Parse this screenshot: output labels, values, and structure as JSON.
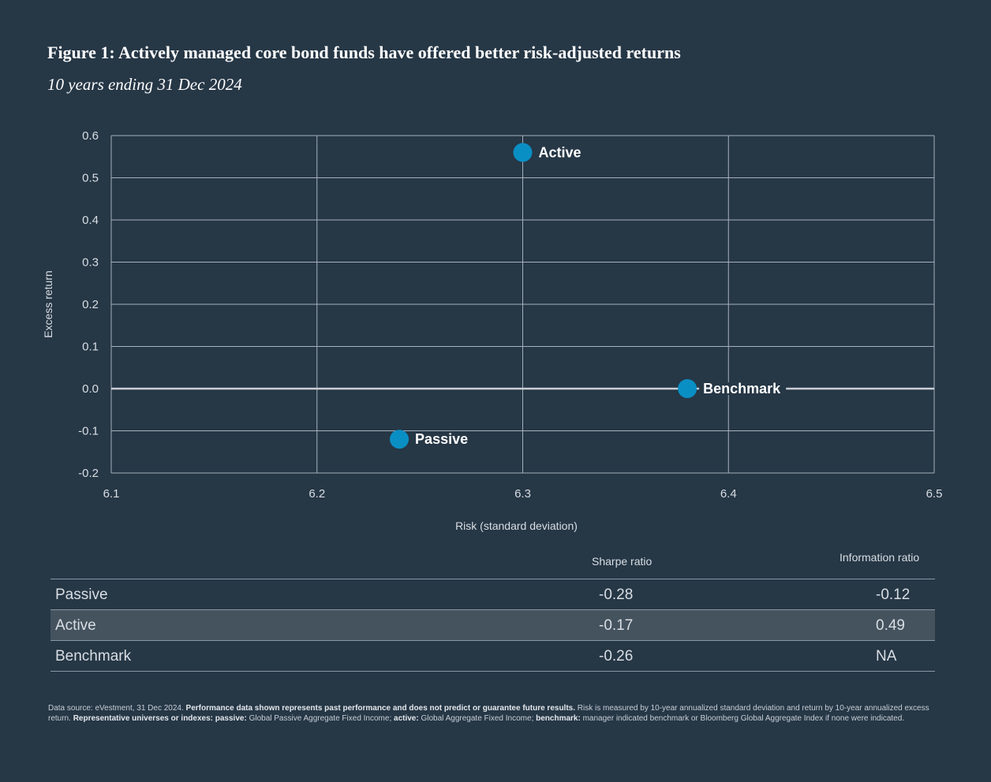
{
  "title": "Figure 1: Actively managed core bond funds have offered better risk-adjusted returns",
  "subtitle": "10 years ending 31 Dec 2024",
  "colors": {
    "background": "#263746",
    "point": "#0a8fc4",
    "grid": "#a7b1ba",
    "zero_line": "#c9cfd5"
  },
  "chart_data": {
    "type": "scatter",
    "xlabel": "Risk (standard deviation)",
    "ylabel": "Excess return",
    "xlim": [
      6.1,
      6.5
    ],
    "ylim": [
      -0.2,
      0.6
    ],
    "x_ticks": [
      6.1,
      6.2,
      6.3,
      6.4,
      6.5
    ],
    "x_tick_labels": [
      "6.1",
      "6.2",
      "6.3",
      "6.4",
      "6.5"
    ],
    "y_ticks": [
      -0.2,
      -0.1,
      0.0,
      0.1,
      0.2,
      0.3,
      0.4,
      0.5,
      0.6
    ],
    "y_tick_labels": [
      "-0.2",
      "-0.1",
      "0.0",
      "0.1",
      "0.2",
      "0.3",
      "0.4",
      "0.5",
      "0.6"
    ],
    "grid": true,
    "points": [
      {
        "name": "Active",
        "x": 6.3,
        "y": 0.56
      },
      {
        "name": "Benchmark",
        "x": 6.38,
        "y": 0.0
      },
      {
        "name": "Passive",
        "x": 6.24,
        "y": -0.12
      }
    ]
  },
  "table": {
    "headers": {
      "sharpe": "Sharpe ratio",
      "info": "Information ratio"
    },
    "rows": [
      {
        "name": "Passive",
        "sharpe": "-0.28",
        "info": "-0.12"
      },
      {
        "name": "Active",
        "sharpe": "-0.17",
        "info": "0.49"
      },
      {
        "name": "Benchmark",
        "sharpe": "-0.26",
        "info": "NA"
      }
    ]
  },
  "footnote": {
    "p1": "Data source: eVestment, 31 Dec 2024. ",
    "b1": "Performance data shown represents past performance and does not predict or guarantee future results.",
    "p2": " Risk is measured by 10-year annualized standard deviation and return by 10-year annualized excess return. ",
    "b2": "Representative universes or indexes: passive:",
    "p3": " Global Passive Aggregate Fixed Income; ",
    "b3": "active:",
    "p4": " Global Aggregate Fixed Income; ",
    "b4": "benchmark:",
    "p5": " manager indicated benchmark or Bloomberg Global Aggregate Index if none were indicated."
  }
}
